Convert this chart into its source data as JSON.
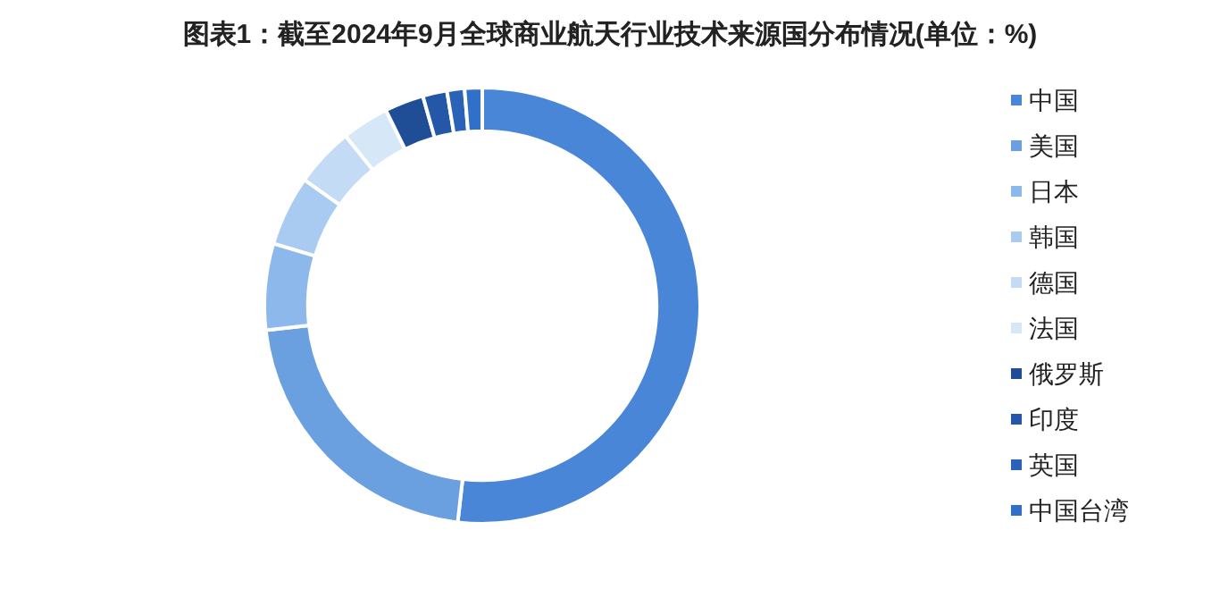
{
  "chart_data": {
    "type": "donut",
    "title": "图表1：截至2024年9月全球商业航天行业技术来源国分布情况(单位：%)",
    "categories": [
      "中国",
      "美国",
      "日本",
      "韩国",
      "德国",
      "法国",
      "俄罗斯",
      "印度",
      "英国",
      "中国台湾"
    ],
    "values": [
      51.8,
      21.4,
      6.4,
      5.2,
      4.4,
      3.5,
      2.9,
      1.8,
      1.3,
      1.3
    ],
    "colors": [
      "#4a86d8",
      "#6a9fe0",
      "#8db8ec",
      "#a9cbf2",
      "#c3dbf5",
      "#d6e7f8",
      "#1f4e96",
      "#2457a8",
      "#2a62b8",
      "#3170c8"
    ],
    "legend": "right"
  }
}
